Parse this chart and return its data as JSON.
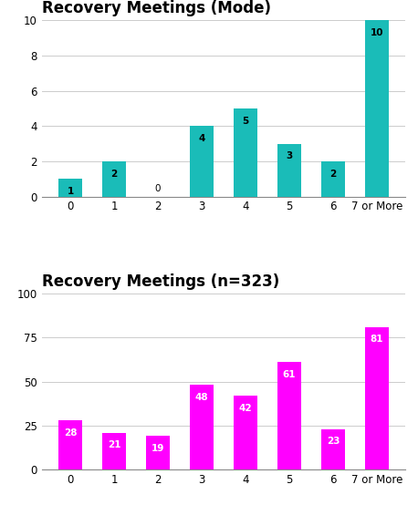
{
  "chart1": {
    "title": "Recovery Meetings (Mode)",
    "categories": [
      "0",
      "1",
      "2",
      "3",
      "4",
      "5",
      "6",
      "7 or More"
    ],
    "values": [
      1,
      2,
      0,
      4,
      5,
      3,
      2,
      10
    ],
    "bar_color": "#1ABCB8",
    "ylim": [
      0,
      10
    ],
    "yticks": [
      0,
      2,
      4,
      6,
      8,
      10
    ],
    "label_color": "black"
  },
  "chart2": {
    "title": "Recovery Meetings (n=323)",
    "categories": [
      "0",
      "1",
      "2",
      "3",
      "4",
      "5",
      "6",
      "7 or More"
    ],
    "values": [
      28,
      21,
      19,
      48,
      42,
      61,
      23,
      81
    ],
    "bar_color": "#FF00FF",
    "ylim": [
      0,
      100
    ],
    "yticks": [
      0,
      25,
      50,
      75,
      100
    ],
    "label_color": "white"
  },
  "background_color": "#FFFFFF",
  "title_fontsize": 12,
  "tick_fontsize": 8.5,
  "label_fontsize": 7.5,
  "bar_width": 0.55
}
